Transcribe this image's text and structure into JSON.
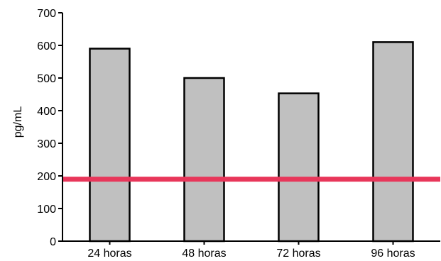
{
  "chart_data": {
    "type": "bar",
    "title": "",
    "xlabel": "",
    "ylabel": "pg/mL",
    "categories": [
      "24 horas",
      "48 horas",
      "72 horas",
      "96 horas"
    ],
    "values": [
      590,
      500,
      453,
      610
    ],
    "ylim": [
      0,
      700
    ],
    "yticks": [
      0,
      100,
      200,
      300,
      400,
      500,
      600,
      700
    ],
    "grid": false,
    "legend": "none",
    "reference_line": {
      "value": 190,
      "color": "#e8365a"
    },
    "colors": {
      "bar_fill": "#c0c0c0",
      "bar_stroke": "#000000",
      "axis": "#000000"
    }
  }
}
